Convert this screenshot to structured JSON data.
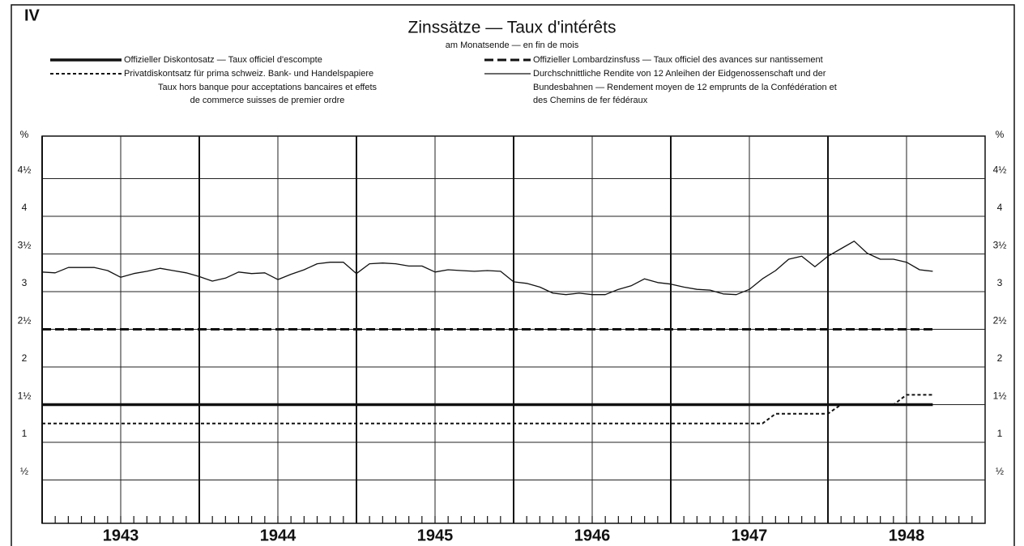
{
  "chart_data": {
    "type": "line",
    "panel_label": "IV",
    "title": "Zinssätze — Taux d'intérêts",
    "subtitle": "am Monatsende — en fin de mois",
    "ylabel": "%",
    "xlim": [
      1943,
      1949
    ],
    "xticks": [
      1943,
      1944,
      1945,
      1946,
      1947,
      1948
    ],
    "ylim": [
      0,
      5
    ],
    "yticks": [
      {
        "value": 0.5,
        "label": "½"
      },
      1,
      {
        "value": 1.5,
        "label": "1½"
      },
      2,
      {
        "value": 2.5,
        "label": "2½"
      },
      3,
      {
        "value": 3.5,
        "label": "3½"
      },
      4,
      {
        "value": 4.5,
        "label": "4½"
      }
    ],
    "grid": true,
    "x": [
      1943,
      1943.083,
      1943.167,
      1943.25,
      1943.333,
      1943.417,
      1943.5,
      1943.583,
      1943.667,
      1943.75,
      1943.833,
      1943.917,
      1944,
      1944.083,
      1944.167,
      1944.25,
      1944.333,
      1944.417,
      1944.5,
      1944.583,
      1944.667,
      1944.75,
      1944.833,
      1944.917,
      1945,
      1945.083,
      1945.167,
      1945.25,
      1945.333,
      1945.417,
      1945.5,
      1945.583,
      1945.667,
      1945.75,
      1945.833,
      1945.917,
      1946,
      1946.083,
      1946.167,
      1946.25,
      1946.333,
      1946.417,
      1946.5,
      1946.583,
      1946.667,
      1946.75,
      1946.833,
      1946.917,
      1947,
      1947.083,
      1947.167,
      1947.25,
      1947.333,
      1947.417,
      1947.5,
      1947.583,
      1947.667,
      1947.75,
      1947.833,
      1947.917,
      1948,
      1948.083,
      1948.167,
      1948.25,
      1948.333,
      1948.417,
      1948.5,
      1948.583,
      1948.667
    ],
    "series": [
      {
        "name": "Offizieller Diskontosatz — Taux officiel d'escompte",
        "color": "#111111",
        "style": "thick",
        "values": [
          1.5,
          1.5,
          1.5,
          1.5,
          1.5,
          1.5,
          1.5,
          1.5,
          1.5,
          1.5,
          1.5,
          1.5,
          1.5,
          1.5,
          1.5,
          1.5,
          1.5,
          1.5,
          1.5,
          1.5,
          1.5,
          1.5,
          1.5,
          1.5,
          1.5,
          1.5,
          1.5,
          1.5,
          1.5,
          1.5,
          1.5,
          1.5,
          1.5,
          1.5,
          1.5,
          1.5,
          1.5,
          1.5,
          1.5,
          1.5,
          1.5,
          1.5,
          1.5,
          1.5,
          1.5,
          1.5,
          1.5,
          1.5,
          1.5,
          1.5,
          1.5,
          1.5,
          1.5,
          1.5,
          1.5,
          1.5,
          1.5,
          1.5,
          1.5,
          1.5,
          1.5,
          1.5,
          1.5,
          1.5,
          1.5,
          1.5,
          1.5,
          1.5,
          1.5
        ]
      },
      {
        "name": "Offizieller Lombardzinsfuss — Taux officiel des avances sur nantissement",
        "color": "#111111",
        "style": "longdash",
        "values": [
          2.5,
          2.5,
          2.5,
          2.5,
          2.5,
          2.5,
          2.5,
          2.5,
          2.5,
          2.5,
          2.5,
          2.5,
          2.5,
          2.5,
          2.5,
          2.5,
          2.5,
          2.5,
          2.5,
          2.5,
          2.5,
          2.5,
          2.5,
          2.5,
          2.5,
          2.5,
          2.5,
          2.5,
          2.5,
          2.5,
          2.5,
          2.5,
          2.5,
          2.5,
          2.5,
          2.5,
          2.5,
          2.5,
          2.5,
          2.5,
          2.5,
          2.5,
          2.5,
          2.5,
          2.5,
          2.5,
          2.5,
          2.5,
          2.5,
          2.5,
          2.5,
          2.5,
          2.5,
          2.5,
          2.5,
          2.5,
          2.5,
          2.5,
          2.5,
          2.5,
          2.5,
          2.5,
          2.5,
          2.5,
          2.5,
          2.5,
          2.5,
          2.5,
          2.5
        ]
      },
      {
        "name": "Privatdiskontsatz für prima schweiz. Bank- und Handelspapiere",
        "name_cont": [
          "Taux hors banque pour acceptations bancaires et effets",
          "de commerce suisses de premier ordre"
        ],
        "color": "#111111",
        "style": "shortdash",
        "values": [
          1.25,
          1.25,
          1.25,
          1.25,
          1.25,
          1.25,
          1.25,
          1.25,
          1.25,
          1.25,
          1.25,
          1.25,
          1.25,
          1.25,
          1.25,
          1.25,
          1.25,
          1.25,
          1.25,
          1.25,
          1.25,
          1.25,
          1.25,
          1.25,
          1.25,
          1.25,
          1.25,
          1.25,
          1.25,
          1.25,
          1.25,
          1.25,
          1.25,
          1.25,
          1.25,
          1.25,
          1.25,
          1.25,
          1.25,
          1.25,
          1.25,
          1.25,
          1.25,
          1.25,
          1.25,
          1.25,
          1.25,
          1.25,
          1.25,
          1.25,
          1.25,
          1.25,
          1.25,
          1.25,
          1.25,
          1.25,
          1.38,
          1.38,
          1.38,
          1.38,
          1.38,
          1.5,
          1.5,
          1.5,
          1.5,
          1.5,
          1.63,
          1.63,
          1.63
        ]
      },
      {
        "name": "Durchschnittliche Rendite von 12 Anleihen der Eidgenossenschaft und der",
        "name_cont": [
          "Bundesbahnen — Rendement moyen de 12 emprunts de la Confédération et",
          "des Chemins de fer fédéraux"
        ],
        "color": "#111111",
        "style": "thin",
        "values": [
          3.26,
          3.25,
          3.32,
          3.32,
          3.32,
          3.28,
          3.19,
          3.24,
          3.27,
          3.31,
          3.28,
          3.25,
          3.2,
          3.14,
          3.18,
          3.26,
          3.24,
          3.25,
          3.16,
          3.23,
          3.29,
          3.37,
          3.39,
          3.39,
          3.24,
          3.37,
          3.38,
          3.37,
          3.34,
          3.34,
          3.26,
          3.29,
          3.28,
          3.27,
          3.28,
          3.27,
          3.13,
          3.11,
          3.06,
          2.98,
          2.96,
          2.98,
          2.96,
          2.96,
          3.03,
          3.08,
          3.17,
          3.12,
          3.1,
          3.06,
          3.03,
          3.02,
          2.97,
          2.96,
          3.03,
          3.17,
          3.28,
          3.43,
          3.47,
          3.33,
          3.47,
          3.57,
          3.67,
          3.51,
          3.43,
          3.43,
          3.39,
          3.29,
          3.27
        ]
      }
    ]
  }
}
